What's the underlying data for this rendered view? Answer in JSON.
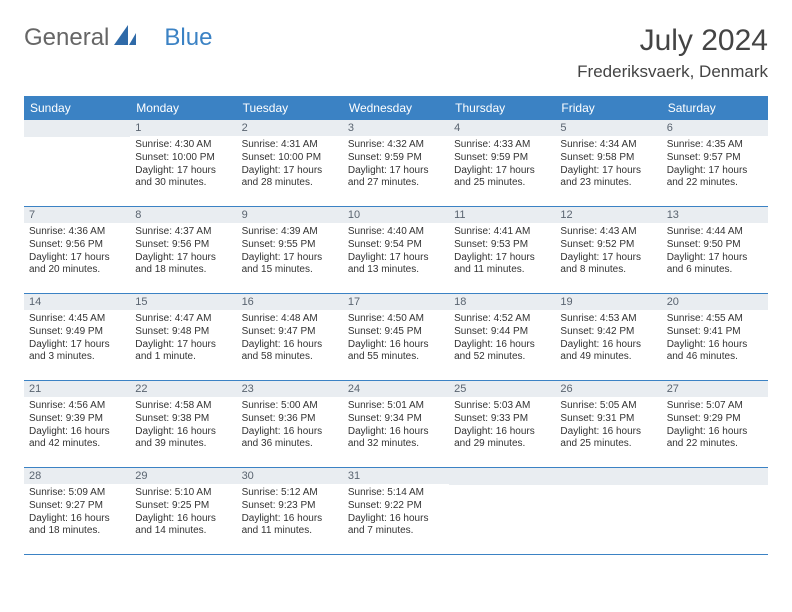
{
  "logo": {
    "t1": "General",
    "t2": "Blue"
  },
  "title": "July 2024",
  "location": "Frederiksvaerk, Denmark",
  "weekdays": [
    "Sunday",
    "Monday",
    "Tuesday",
    "Wednesday",
    "Thursday",
    "Friday",
    "Saturday"
  ],
  "colors": {
    "header_bg": "#3b82c4",
    "header_fg": "#ffffff",
    "daynum_bg": "#e9edf1",
    "daynum_fg": "#5a6470",
    "rule": "#3b82c4"
  },
  "weeks": [
    [
      null,
      {
        "n": "1",
        "sr": "Sunrise: 4:30 AM",
        "ss": "Sunset: 10:00 PM",
        "dl": "Daylight: 17 hours and 30 minutes."
      },
      {
        "n": "2",
        "sr": "Sunrise: 4:31 AM",
        "ss": "Sunset: 10:00 PM",
        "dl": "Daylight: 17 hours and 28 minutes."
      },
      {
        "n": "3",
        "sr": "Sunrise: 4:32 AM",
        "ss": "Sunset: 9:59 PM",
        "dl": "Daylight: 17 hours and 27 minutes."
      },
      {
        "n": "4",
        "sr": "Sunrise: 4:33 AM",
        "ss": "Sunset: 9:59 PM",
        "dl": "Daylight: 17 hours and 25 minutes."
      },
      {
        "n": "5",
        "sr": "Sunrise: 4:34 AM",
        "ss": "Sunset: 9:58 PM",
        "dl": "Daylight: 17 hours and 23 minutes."
      },
      {
        "n": "6",
        "sr": "Sunrise: 4:35 AM",
        "ss": "Sunset: 9:57 PM",
        "dl": "Daylight: 17 hours and 22 minutes."
      }
    ],
    [
      {
        "n": "7",
        "sr": "Sunrise: 4:36 AM",
        "ss": "Sunset: 9:56 PM",
        "dl": "Daylight: 17 hours and 20 minutes."
      },
      {
        "n": "8",
        "sr": "Sunrise: 4:37 AM",
        "ss": "Sunset: 9:56 PM",
        "dl": "Daylight: 17 hours and 18 minutes."
      },
      {
        "n": "9",
        "sr": "Sunrise: 4:39 AM",
        "ss": "Sunset: 9:55 PM",
        "dl": "Daylight: 17 hours and 15 minutes."
      },
      {
        "n": "10",
        "sr": "Sunrise: 4:40 AM",
        "ss": "Sunset: 9:54 PM",
        "dl": "Daylight: 17 hours and 13 minutes."
      },
      {
        "n": "11",
        "sr": "Sunrise: 4:41 AM",
        "ss": "Sunset: 9:53 PM",
        "dl": "Daylight: 17 hours and 11 minutes."
      },
      {
        "n": "12",
        "sr": "Sunrise: 4:43 AM",
        "ss": "Sunset: 9:52 PM",
        "dl": "Daylight: 17 hours and 8 minutes."
      },
      {
        "n": "13",
        "sr": "Sunrise: 4:44 AM",
        "ss": "Sunset: 9:50 PM",
        "dl": "Daylight: 17 hours and 6 minutes."
      }
    ],
    [
      {
        "n": "14",
        "sr": "Sunrise: 4:45 AM",
        "ss": "Sunset: 9:49 PM",
        "dl": "Daylight: 17 hours and 3 minutes."
      },
      {
        "n": "15",
        "sr": "Sunrise: 4:47 AM",
        "ss": "Sunset: 9:48 PM",
        "dl": "Daylight: 17 hours and 1 minute."
      },
      {
        "n": "16",
        "sr": "Sunrise: 4:48 AM",
        "ss": "Sunset: 9:47 PM",
        "dl": "Daylight: 16 hours and 58 minutes."
      },
      {
        "n": "17",
        "sr": "Sunrise: 4:50 AM",
        "ss": "Sunset: 9:45 PM",
        "dl": "Daylight: 16 hours and 55 minutes."
      },
      {
        "n": "18",
        "sr": "Sunrise: 4:52 AM",
        "ss": "Sunset: 9:44 PM",
        "dl": "Daylight: 16 hours and 52 minutes."
      },
      {
        "n": "19",
        "sr": "Sunrise: 4:53 AM",
        "ss": "Sunset: 9:42 PM",
        "dl": "Daylight: 16 hours and 49 minutes."
      },
      {
        "n": "20",
        "sr": "Sunrise: 4:55 AM",
        "ss": "Sunset: 9:41 PM",
        "dl": "Daylight: 16 hours and 46 minutes."
      }
    ],
    [
      {
        "n": "21",
        "sr": "Sunrise: 4:56 AM",
        "ss": "Sunset: 9:39 PM",
        "dl": "Daylight: 16 hours and 42 minutes."
      },
      {
        "n": "22",
        "sr": "Sunrise: 4:58 AM",
        "ss": "Sunset: 9:38 PM",
        "dl": "Daylight: 16 hours and 39 minutes."
      },
      {
        "n": "23",
        "sr": "Sunrise: 5:00 AM",
        "ss": "Sunset: 9:36 PM",
        "dl": "Daylight: 16 hours and 36 minutes."
      },
      {
        "n": "24",
        "sr": "Sunrise: 5:01 AM",
        "ss": "Sunset: 9:34 PM",
        "dl": "Daylight: 16 hours and 32 minutes."
      },
      {
        "n": "25",
        "sr": "Sunrise: 5:03 AM",
        "ss": "Sunset: 9:33 PM",
        "dl": "Daylight: 16 hours and 29 minutes."
      },
      {
        "n": "26",
        "sr": "Sunrise: 5:05 AM",
        "ss": "Sunset: 9:31 PM",
        "dl": "Daylight: 16 hours and 25 minutes."
      },
      {
        "n": "27",
        "sr": "Sunrise: 5:07 AM",
        "ss": "Sunset: 9:29 PM",
        "dl": "Daylight: 16 hours and 22 minutes."
      }
    ],
    [
      {
        "n": "28",
        "sr": "Sunrise: 5:09 AM",
        "ss": "Sunset: 9:27 PM",
        "dl": "Daylight: 16 hours and 18 minutes."
      },
      {
        "n": "29",
        "sr": "Sunrise: 5:10 AM",
        "ss": "Sunset: 9:25 PM",
        "dl": "Daylight: 16 hours and 14 minutes."
      },
      {
        "n": "30",
        "sr": "Sunrise: 5:12 AM",
        "ss": "Sunset: 9:23 PM",
        "dl": "Daylight: 16 hours and 11 minutes."
      },
      {
        "n": "31",
        "sr": "Sunrise: 5:14 AM",
        "ss": "Sunset: 9:22 PM",
        "dl": "Daylight: 16 hours and 7 minutes."
      },
      null,
      null,
      null
    ]
  ]
}
